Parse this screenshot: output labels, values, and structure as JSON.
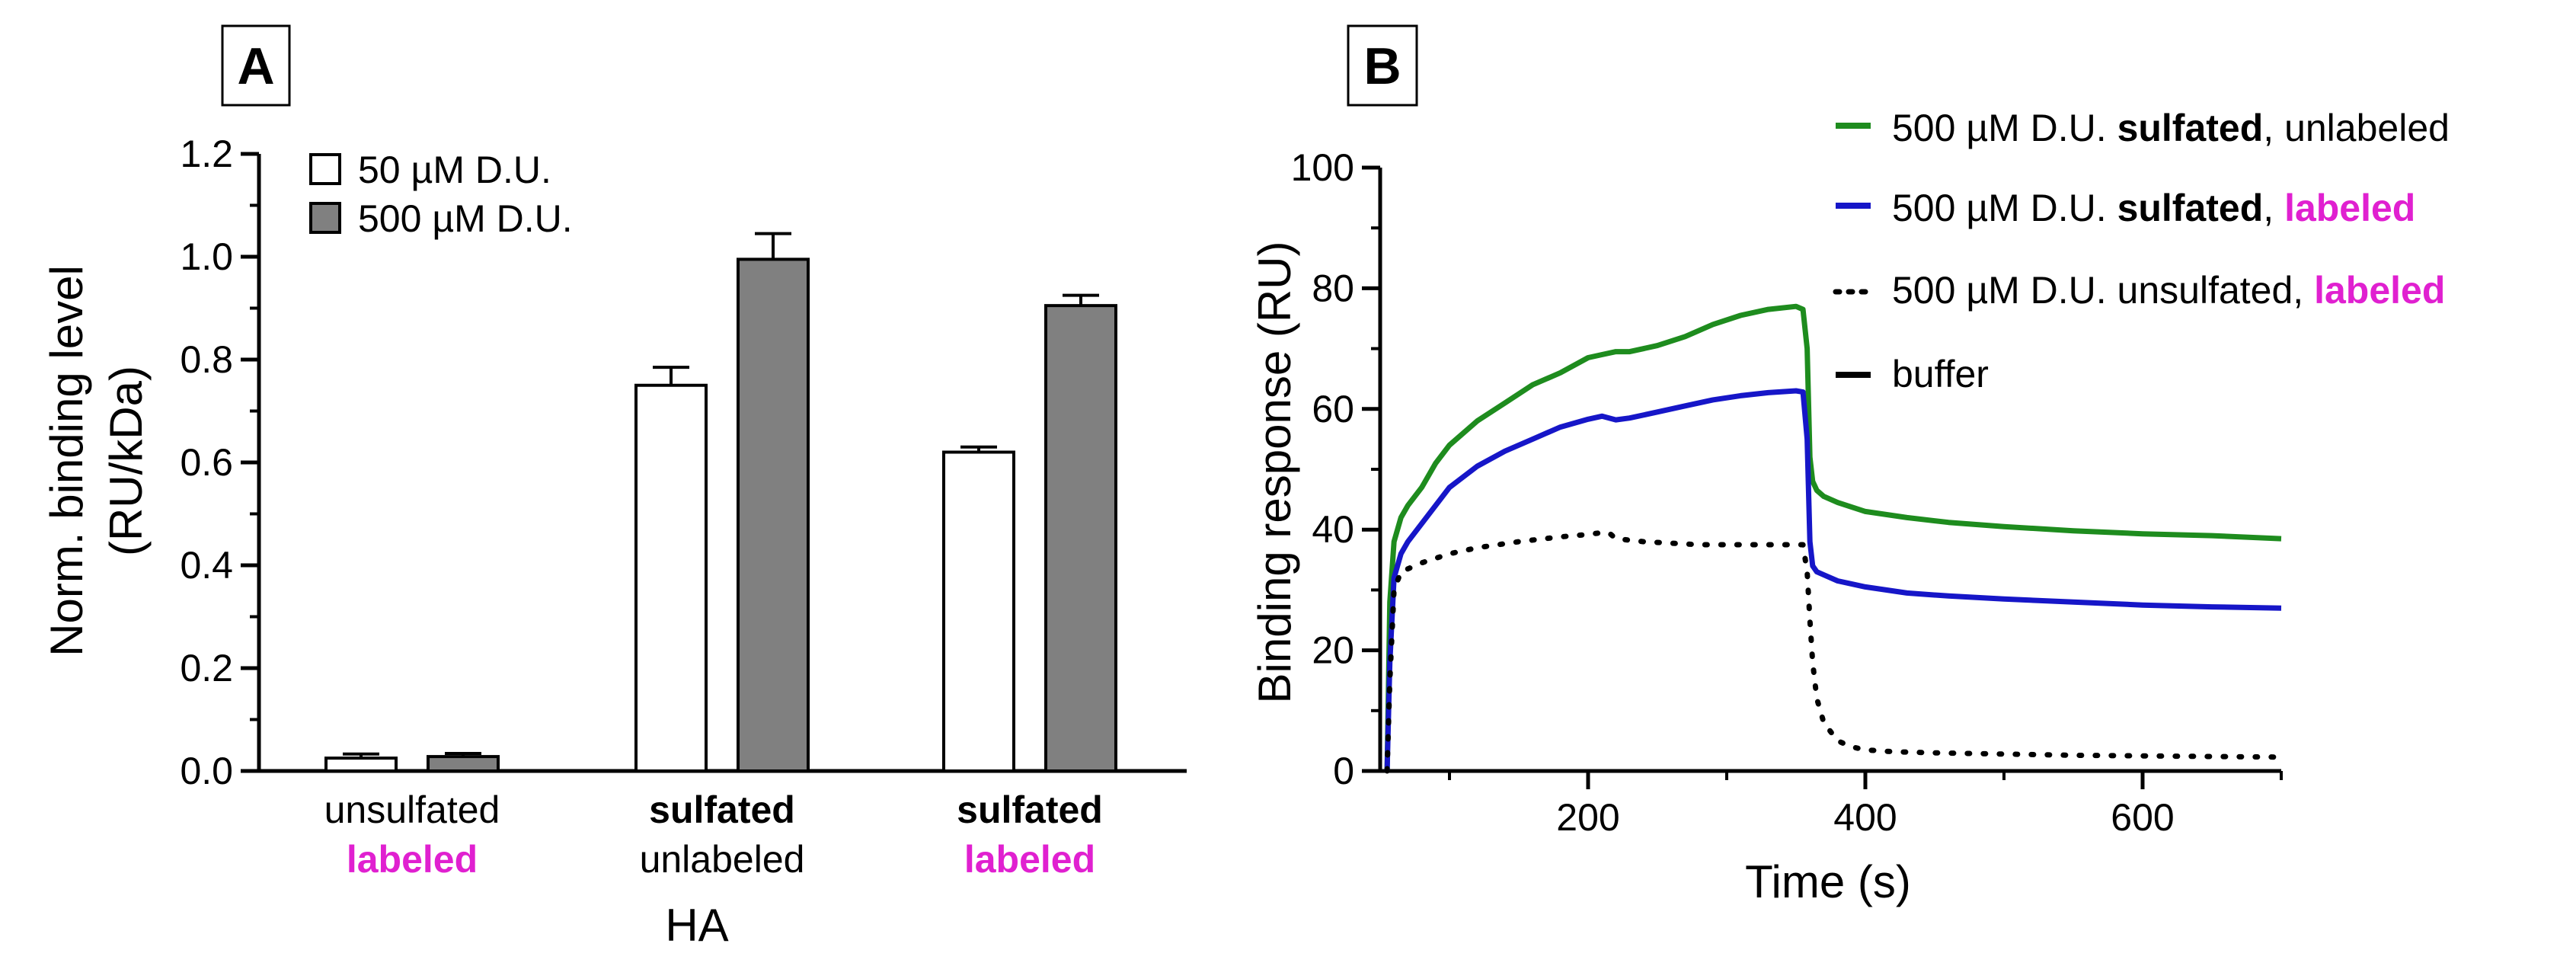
{
  "chart_data": [
    {
      "panel": "A",
      "type": "bar",
      "ylabel_line1": "Norm. binding level",
      "ylabel_line2": "(RU/kDa)",
      "xlabel": "HA",
      "ylim": [
        0,
        1.2
      ],
      "yticks": [
        "0.0",
        "0.2",
        "0.4",
        "0.6",
        "0.8",
        "1.0",
        "1.2"
      ],
      "categories": [
        {
          "line1": "unsulfated",
          "line2": "labeled"
        },
        {
          "line1": "sulfated",
          "line2": "unlabeled"
        },
        {
          "line1": "sulfated",
          "line2": "labeled"
        }
      ],
      "series": [
        {
          "name": "50 µM D.U.",
          "color": "#ffffff",
          "values": [
            0.025,
            0.75,
            0.62
          ],
          "errors": [
            0.008,
            0.035,
            0.01
          ]
        },
        {
          "name": "500 µM D.U.",
          "color": "#808080",
          "values": [
            0.028,
            0.995,
            0.905
          ],
          "errors": [
            0.006,
            0.05,
            0.02
          ]
        }
      ]
    },
    {
      "panel": "B",
      "type": "line",
      "xlabel": "Time (s)",
      "ylabel": "Binding response (RU)",
      "xlim": [
        50,
        700
      ],
      "ylim": [
        0,
        100
      ],
      "xticks": [
        "200",
        "400",
        "600"
      ],
      "yticks": [
        "0",
        "20",
        "40",
        "60",
        "80",
        "100"
      ],
      "legend": [
        {
          "pre": "500 µM D.U. ",
          "bold": "sulfated",
          "sep": ", ",
          "post": "unlabeled",
          "post_style": "plain",
          "color": "#1e8c1e",
          "style": "solid"
        },
        {
          "pre": "500 µM D.U. ",
          "bold": "sulfated",
          "sep": ", ",
          "post": "labeled",
          "post_style": "magenta",
          "color": "#1616c8",
          "style": "solid"
        },
        {
          "pre": "500 µM D.U. unsulfated",
          "bold": "",
          "sep": ", ",
          "post": "labeled",
          "post_style": "magenta",
          "color": "#000000",
          "style": "dotted"
        },
        {
          "pre": "buffer",
          "bold": "",
          "sep": "",
          "post": "",
          "post_style": "plain",
          "color": "#000000",
          "style": "solid"
        }
      ],
      "series": [
        {
          "name": "sulfated unlabeled",
          "color": "#1e8c1e",
          "style": "solid",
          "x": [
            55,
            57,
            60,
            65,
            70,
            80,
            90,
            100,
            120,
            140,
            160,
            180,
            200,
            210,
            220,
            230,
            250,
            270,
            290,
            310,
            330,
            350,
            355,
            358,
            360,
            362,
            365,
            370,
            380,
            400,
            430,
            460,
            500,
            550,
            600,
            650,
            700
          ],
          "y": [
            0,
            28,
            38,
            42,
            44,
            47,
            51,
            54,
            58,
            61,
            64,
            66,
            68.5,
            69,
            69.5,
            69.5,
            70.5,
            72,
            74,
            75.5,
            76.5,
            77,
            76.5,
            70,
            52,
            48,
            46.5,
            45.5,
            44.5,
            43,
            42,
            41.2,
            40.5,
            39.8,
            39.3,
            39,
            38.5
          ]
        },
        {
          "name": "sulfated labeled",
          "color": "#1616c8",
          "style": "solid",
          "x": [
            55,
            57,
            60,
            65,
            70,
            80,
            90,
            100,
            120,
            140,
            160,
            180,
            200,
            210,
            220,
            230,
            250,
            270,
            290,
            310,
            330,
            350,
            355,
            358,
            360,
            362,
            365,
            370,
            380,
            400,
            430,
            460,
            500,
            550,
            600,
            650,
            700
          ],
          "y": [
            0,
            18,
            32,
            36,
            38,
            41,
            44,
            47,
            50.5,
            53,
            55,
            57,
            58.3,
            58.8,
            58.2,
            58.5,
            59.5,
            60.5,
            61.5,
            62.2,
            62.7,
            63,
            62.8,
            55,
            38,
            34,
            33,
            32.5,
            31.5,
            30.5,
            29.5,
            29,
            28.5,
            28,
            27.5,
            27.2,
            27
          ]
        },
        {
          "name": "unsulfated labeled",
          "color": "#000000",
          "style": "dotted",
          "x": [
            55,
            57,
            60,
            65,
            70,
            80,
            100,
            120,
            150,
            180,
            200,
            210,
            215,
            220,
            240,
            280,
            320,
            350,
            355,
            358,
            360,
            362,
            365,
            370,
            380,
            390,
            400,
            420,
            450,
            500,
            550,
            600,
            650,
            700
          ],
          "y": [
            0,
            15,
            30,
            33,
            33.5,
            34.5,
            36,
            37,
            38,
            38.8,
            39.2,
            39.5,
            39.5,
            38.5,
            38,
            37.5,
            37.5,
            37.5,
            37.5,
            33,
            25,
            18,
            12,
            8,
            5,
            4,
            3.5,
            3.2,
            3,
            2.8,
            2.6,
            2.5,
            2.4,
            2.3
          ]
        }
      ]
    }
  ]
}
